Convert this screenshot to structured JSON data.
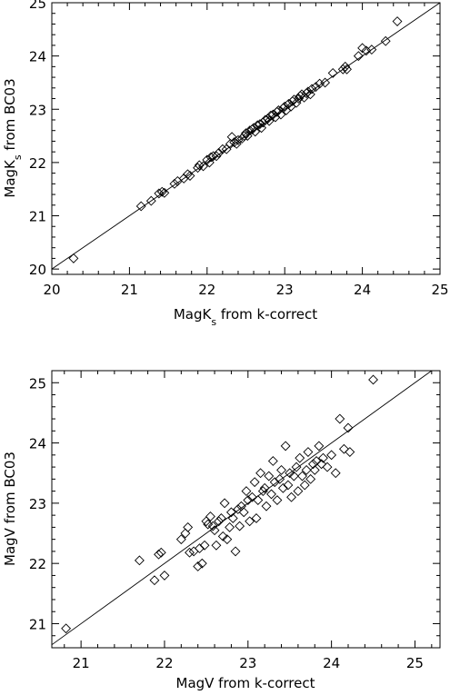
{
  "chart_data": [
    {
      "type": "scatter",
      "xlabel": {
        "main": "MagK",
        "sub": "s",
        "rest": " from k-correct"
      },
      "ylabel": {
        "main": "MagK",
        "sub": "s",
        "rest": " from BC03"
      },
      "xlim": [
        20,
        25
      ],
      "ylim": [
        19.9,
        25
      ],
      "xticks": [
        20,
        21,
        22,
        23,
        24,
        25
      ],
      "yticks": [
        20,
        21,
        22,
        23,
        24,
        25
      ],
      "reference_line": "y = x",
      "marker": "diamond",
      "grid": false,
      "points": [
        [
          20.28,
          20.2
        ],
        [
          21.15,
          21.18
        ],
        [
          21.28,
          21.28
        ],
        [
          21.38,
          21.42
        ],
        [
          21.42,
          21.45
        ],
        [
          21.45,
          21.43
        ],
        [
          21.58,
          21.6
        ],
        [
          21.62,
          21.65
        ],
        [
          21.7,
          21.7
        ],
        [
          21.75,
          21.78
        ],
        [
          21.78,
          21.75
        ],
        [
          21.88,
          21.9
        ],
        [
          21.9,
          21.95
        ],
        [
          21.95,
          21.93
        ],
        [
          22.0,
          22.05
        ],
        [
          22.03,
          22.0
        ],
        [
          22.05,
          22.1
        ],
        [
          22.08,
          22.12
        ],
        [
          22.12,
          22.12
        ],
        [
          22.15,
          22.18
        ],
        [
          22.2,
          22.25
        ],
        [
          22.25,
          22.25
        ],
        [
          22.3,
          22.35
        ],
        [
          22.32,
          22.48
        ],
        [
          22.35,
          22.38
        ],
        [
          22.38,
          22.35
        ],
        [
          22.4,
          22.42
        ],
        [
          22.45,
          22.45
        ],
        [
          22.48,
          22.5
        ],
        [
          22.5,
          22.55
        ],
        [
          22.52,
          22.5
        ],
        [
          22.55,
          22.6
        ],
        [
          22.58,
          22.62
        ],
        [
          22.6,
          22.65
        ],
        [
          22.62,
          22.58
        ],
        [
          22.65,
          22.7
        ],
        [
          22.68,
          22.72
        ],
        [
          22.7,
          22.65
        ],
        [
          22.72,
          22.75
        ],
        [
          22.75,
          22.8
        ],
        [
          22.78,
          22.82
        ],
        [
          22.8,
          22.78
        ],
        [
          22.82,
          22.88
        ],
        [
          22.85,
          22.9
        ],
        [
          22.88,
          22.85
        ],
        [
          22.9,
          22.95
        ],
        [
          22.92,
          22.98
        ],
        [
          22.95,
          22.9
        ],
        [
          22.98,
          23.02
        ],
        [
          23.0,
          23.05
        ],
        [
          23.02,
          22.98
        ],
        [
          23.05,
          23.1
        ],
        [
          23.08,
          23.05
        ],
        [
          23.1,
          23.15
        ],
        [
          23.12,
          23.18
        ],
        [
          23.15,
          23.12
        ],
        [
          23.18,
          23.2
        ],
        [
          23.2,
          23.25
        ],
        [
          23.22,
          23.28
        ],
        [
          23.25,
          23.22
        ],
        [
          23.28,
          23.3
        ],
        [
          23.3,
          23.33
        ],
        [
          23.33,
          23.28
        ],
        [
          23.35,
          23.38
        ],
        [
          23.4,
          23.42
        ],
        [
          23.45,
          23.48
        ],
        [
          23.52,
          23.5
        ],
        [
          23.62,
          23.68
        ],
        [
          23.75,
          23.75
        ],
        [
          23.78,
          23.8
        ],
        [
          23.8,
          23.75
        ],
        [
          23.95,
          24.0
        ],
        [
          24.0,
          24.15
        ],
        [
          24.05,
          24.1
        ],
        [
          24.12,
          24.12
        ],
        [
          24.3,
          24.28
        ],
        [
          24.45,
          24.65
        ]
      ]
    },
    {
      "type": "scatter",
      "xlabel": "MagV from k-correct",
      "ylabel": "MagV from BC03",
      "xlim": [
        20.65,
        25.3
      ],
      "ylim": [
        20.6,
        25.2
      ],
      "xticks": [
        21,
        22,
        23,
        24,
        25
      ],
      "yticks": [
        21,
        22,
        23,
        24,
        25
      ],
      "reference_line": "y = x",
      "marker": "diamond",
      "grid": false,
      "points": [
        [
          20.82,
          20.92
        ],
        [
          21.7,
          22.05
        ],
        [
          21.88,
          21.72
        ],
        [
          21.93,
          22.15
        ],
        [
          21.96,
          22.18
        ],
        [
          22.0,
          21.8
        ],
        [
          22.2,
          22.4
        ],
        [
          22.25,
          22.5
        ],
        [
          22.28,
          22.6
        ],
        [
          22.3,
          22.18
        ],
        [
          22.35,
          22.2
        ],
        [
          22.4,
          21.95
        ],
        [
          22.42,
          22.25
        ],
        [
          22.45,
          22.0
        ],
        [
          22.48,
          22.3
        ],
        [
          22.5,
          22.7
        ],
        [
          22.52,
          22.65
        ],
        [
          22.55,
          22.78
        ],
        [
          22.58,
          22.62
        ],
        [
          22.6,
          22.55
        ],
        [
          22.62,
          22.3
        ],
        [
          22.65,
          22.7
        ],
        [
          22.68,
          22.75
        ],
        [
          22.7,
          22.45
        ],
        [
          22.72,
          23.0
        ],
        [
          22.75,
          22.4
        ],
        [
          22.78,
          22.6
        ],
        [
          22.8,
          22.85
        ],
        [
          22.82,
          22.75
        ],
        [
          22.85,
          22.2
        ],
        [
          22.88,
          22.9
        ],
        [
          22.9,
          22.62
        ],
        [
          22.92,
          22.95
        ],
        [
          22.95,
          22.85
        ],
        [
          22.98,
          23.2
        ],
        [
          23.0,
          23.05
        ],
        [
          23.02,
          22.7
        ],
        [
          23.05,
          23.1
        ],
        [
          23.08,
          23.35
        ],
        [
          23.1,
          22.75
        ],
        [
          23.12,
          23.05
        ],
        [
          23.15,
          23.5
        ],
        [
          23.18,
          23.2
        ],
        [
          23.2,
          23.25
        ],
        [
          23.22,
          22.95
        ],
        [
          23.25,
          23.45
        ],
        [
          23.28,
          23.15
        ],
        [
          23.3,
          23.7
        ],
        [
          23.32,
          23.35
        ],
        [
          23.35,
          23.05
        ],
        [
          23.38,
          23.4
        ],
        [
          23.4,
          23.55
        ],
        [
          23.42,
          23.25
        ],
        [
          23.45,
          23.95
        ],
        [
          23.48,
          23.3
        ],
        [
          23.5,
          23.5
        ],
        [
          23.52,
          23.1
        ],
        [
          23.55,
          23.45
        ],
        [
          23.58,
          23.6
        ],
        [
          23.6,
          23.2
        ],
        [
          23.62,
          23.75
        ],
        [
          23.65,
          23.45
        ],
        [
          23.68,
          23.3
        ],
        [
          23.7,
          23.55
        ],
        [
          23.72,
          23.85
        ],
        [
          23.75,
          23.4
        ],
        [
          23.78,
          23.65
        ],
        [
          23.8,
          23.55
        ],
        [
          23.82,
          23.7
        ],
        [
          23.85,
          23.95
        ],
        [
          23.88,
          23.65
        ],
        [
          23.9,
          23.75
        ],
        [
          23.95,
          23.6
        ],
        [
          24.0,
          23.8
        ],
        [
          24.05,
          23.5
        ],
        [
          24.1,
          24.4
        ],
        [
          24.15,
          23.9
        ],
        [
          24.2,
          24.25
        ],
        [
          24.22,
          23.85
        ],
        [
          24.5,
          25.05
        ]
      ]
    }
  ]
}
